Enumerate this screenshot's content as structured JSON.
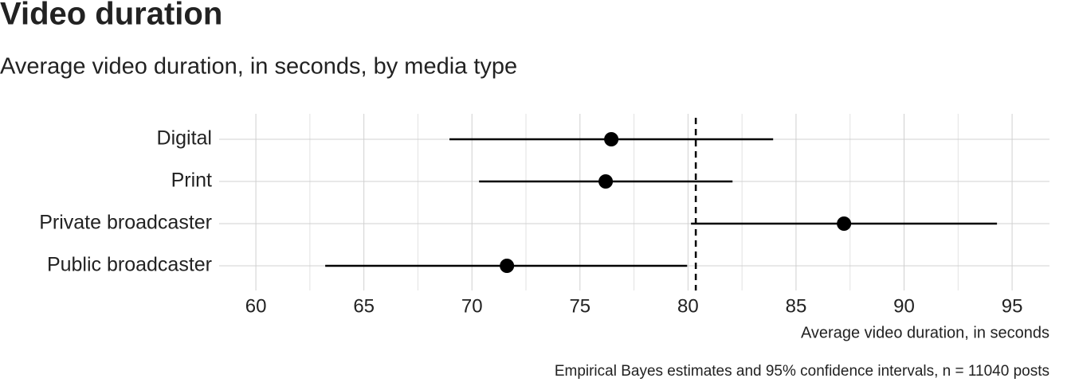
{
  "chart_data": {
    "type": "interval",
    "title": "Video duration",
    "subtitle": "Average video duration, in seconds, by media type",
    "x_label": "Average video duration, in seconds",
    "caption": "Empirical Bayes estimates and 95% confidence intervals, n = 11040 posts",
    "categories": [
      "Digital",
      "Print",
      "Private broadcaster",
      "Public broadcaster"
    ],
    "values": [
      76.45,
      76.19,
      87.22,
      71.62
    ],
    "lower": [
      68.96,
      70.33,
      80.14,
      63.21
    ],
    "upper": [
      83.94,
      82.06,
      94.3,
      79.96
    ],
    "reference_line": 80.36,
    "color": "#000000",
    "xlim": [
      58.3,
      96.73
    ],
    "xticks": [
      60,
      65,
      70,
      75,
      80,
      85,
      90,
      95
    ],
    "minor_xticks": [
      62.5,
      67.5,
      72.5,
      77.5,
      82.5,
      87.5,
      92.5
    ],
    "grid": true
  }
}
